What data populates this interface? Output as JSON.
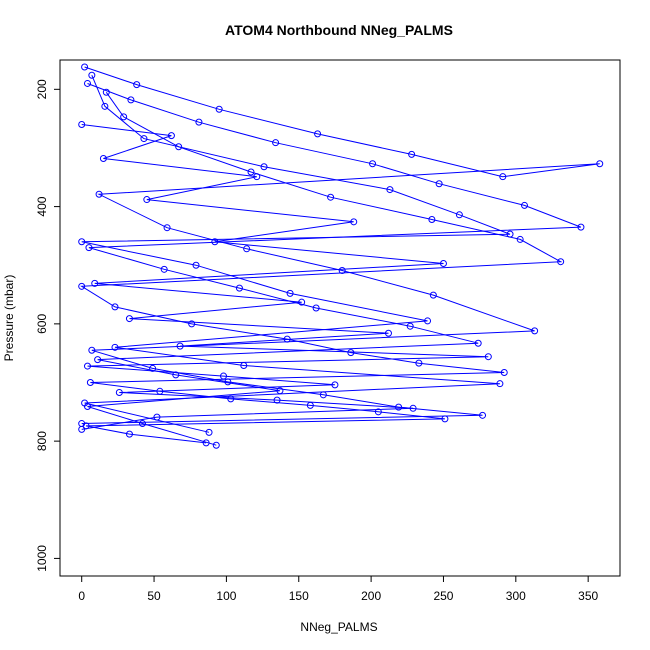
{
  "chart_data": {
    "type": "scatter",
    "title": "ATOM4 Northbound NNeg_PALMS",
    "xlabel": "NNeg_PALMS",
    "ylabel": "Pressure (mbar)",
    "xlim": [
      -15,
      372
    ],
    "ylim": [
      1030,
      150
    ],
    "y_inverted": true,
    "x_ticks": [
      0,
      50,
      100,
      150,
      200,
      250,
      300,
      350
    ],
    "y_ticks": [
      200,
      400,
      600,
      800,
      1000
    ],
    "grid": false,
    "legend": "none",
    "connected": true,
    "color": "#0000ff",
    "marker": "open-circle",
    "series": [
      {
        "x": [
          7,
          16,
          43,
          126,
          213,
          261,
          296,
          0,
          79,
          144,
          239,
          23,
          112,
          289,
          2,
          88
        ],
        "y": [
          176,
          229,
          284,
          332,
          371,
          414,
          447,
          460,
          500,
          548,
          595,
          640,
          671,
          702,
          735,
          785
        ]
      },
      {
        "x": [
          4,
          34,
          81,
          134,
          201,
          247,
          306,
          345,
          5,
          57,
          109,
          162,
          227,
          274,
          11,
          65,
          137,
          4,
          42,
          93
        ],
        "y": [
          190,
          218,
          256,
          291,
          327,
          361,
          398,
          435,
          470,
          507,
          539,
          573,
          604,
          633,
          661,
          687,
          714,
          741,
          770,
          807
        ]
      },
      {
        "x": [
          17,
          29,
          67,
          117,
          172,
          242,
          303,
          331,
          0,
          23,
          76,
          142,
          186,
          233,
          292,
          6,
          54,
          103,
          158,
          205,
          251,
          3,
          33,
          86
        ],
        "y": [
          205,
          247,
          298,
          341,
          384,
          422,
          456,
          494,
          536,
          571,
          600,
          626,
          649,
          667,
          683,
          700,
          715,
          728,
          739,
          750,
          762,
          774,
          788,
          803
        ]
      },
      {
        "x": [
          0,
          62,
          15,
          121,
          45,
          188,
          92,
          250,
          9,
          152,
          33,
          212,
          68,
          281,
          4,
          98,
          175,
          26,
          135,
          229,
          52,
          0
        ],
        "y": [
          260,
          279,
          318,
          349,
          388,
          426,
          460,
          497,
          531,
          563,
          591,
          616,
          638,
          656,
          672,
          689,
          704,
          717,
          730,
          744,
          759,
          780
        ]
      },
      {
        "x": [
          2,
          38,
          95,
          163,
          228,
          291,
          358,
          12,
          59,
          114,
          180,
          243,
          313,
          7,
          49,
          101,
          167,
          219,
          277,
          0
        ],
        "y": [
          162,
          192,
          234,
          276,
          311,
          349,
          327,
          379,
          436,
          472,
          509,
          551,
          612,
          645,
          676,
          699,
          721,
          742,
          756,
          770
        ]
      }
    ]
  }
}
